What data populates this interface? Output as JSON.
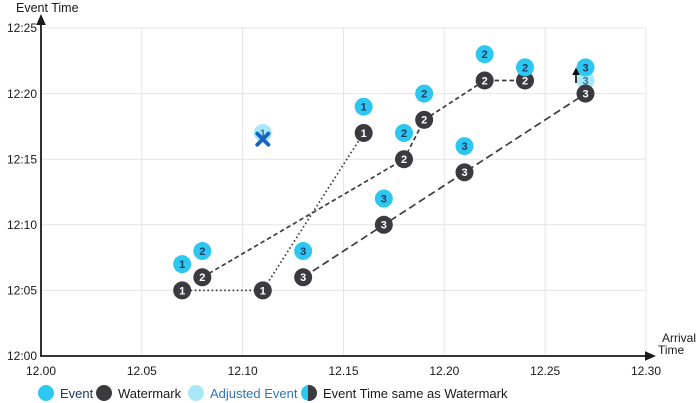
{
  "chart": {
    "y_axis_title": "Event Time",
    "x_axis_title_line1": "Arrival",
    "x_axis_title_line2": "Time"
  },
  "legend": {
    "items": [
      {
        "label": "Event",
        "marker": "event-circle",
        "text_color": "#1f3864"
      },
      {
        "label": "Watermark",
        "marker": "watermark-circle",
        "text_color": "#1a1a1a"
      },
      {
        "label": "Adjusted Event",
        "marker": "adjusted-event-circle",
        "text_color": "#2e75b6"
      },
      {
        "label": "Event Time same as Watermark",
        "marker": "half-event-half-watermark-circle",
        "text_color": "#1a1a1a"
      }
    ]
  },
  "chart_data": {
    "type": "scatter",
    "title": "",
    "x_axis": {
      "label": "Arrival Time",
      "ticks": [
        "12.00",
        "12.05",
        "12.10",
        "12.15",
        "12.20",
        "12.25",
        "12.30"
      ],
      "tick_values": [
        12.0,
        12.05,
        12.1,
        12.15,
        12.2,
        12.25,
        12.3
      ],
      "range": [
        12.0,
        12.3
      ],
      "grid": true
    },
    "y_axis": {
      "label": "Event Time",
      "ticks": [
        "12:00",
        "12:05",
        "12:10",
        "12:15",
        "12:20",
        "12:25"
      ],
      "tick_values_minutes_after_1200": [
        0,
        5,
        10,
        15,
        20,
        25
      ],
      "range_minutes_after_1200": [
        0,
        25
      ],
      "grid": true
    },
    "substreams": [
      {
        "id": "1",
        "watermark_line_style": "dotted",
        "events": [
          {
            "arrival": 12.07,
            "event_time": "12:07",
            "et_min": 7
          },
          {
            "arrival": 12.16,
            "event_time": "12:19",
            "et_min": 19
          }
        ],
        "watermarks": [
          {
            "arrival": 12.07,
            "event_time": "12:05",
            "et_min": 5
          },
          {
            "arrival": 12.11,
            "event_time": "12:05",
            "et_min": 5
          },
          {
            "arrival": 12.16,
            "event_time": "12:17",
            "et_min": 17
          }
        ],
        "adjusted_events": [
          {
            "arrival": 12.11,
            "event_time": "12:17",
            "et_min": 17,
            "x_mark": true,
            "up_arrow": false
          }
        ]
      },
      {
        "id": "2",
        "watermark_line_style": "dashed",
        "events": [
          {
            "arrival": 12.08,
            "event_time": "12:08",
            "et_min": 8
          },
          {
            "arrival": 12.18,
            "event_time": "12:17",
            "et_min": 17
          },
          {
            "arrival": 12.19,
            "event_time": "12:20",
            "et_min": 20
          },
          {
            "arrival": 12.22,
            "event_time": "12:23",
            "et_min": 23
          },
          {
            "arrival": 12.24,
            "event_time": "12:22",
            "et_min": 22
          }
        ],
        "watermarks": [
          {
            "arrival": 12.08,
            "event_time": "12:06",
            "et_min": 6
          },
          {
            "arrival": 12.18,
            "event_time": "12:15",
            "et_min": 15
          },
          {
            "arrival": 12.19,
            "event_time": "12:18",
            "et_min": 18
          },
          {
            "arrival": 12.22,
            "event_time": "12:21",
            "et_min": 21
          },
          {
            "arrival": 12.24,
            "event_time": "12:21",
            "et_min": 21
          }
        ],
        "adjusted_events": []
      },
      {
        "id": "3",
        "watermark_line_style": "longdash",
        "events": [
          {
            "arrival": 12.13,
            "event_time": "12:08",
            "et_min": 8
          },
          {
            "arrival": 12.17,
            "event_time": "12:12",
            "et_min": 12
          },
          {
            "arrival": 12.21,
            "event_time": "12:16",
            "et_min": 16
          },
          {
            "arrival": 12.27,
            "event_time": "12:22",
            "et_min": 22
          }
        ],
        "watermarks": [
          {
            "arrival": 12.13,
            "event_time": "12:06",
            "et_min": 6
          },
          {
            "arrival": 12.17,
            "event_time": "12:10",
            "et_min": 10
          },
          {
            "arrival": 12.21,
            "event_time": "12:14",
            "et_min": 14
          },
          {
            "arrival": 12.27,
            "event_time": "12:20",
            "et_min": 20
          }
        ],
        "adjusted_events": [
          {
            "arrival": 12.27,
            "event_time": "12:21",
            "et_min": 21,
            "x_mark": false,
            "up_arrow": true
          }
        ]
      }
    ],
    "colors": {
      "event": "#2ec7f0",
      "watermark": "#3b3a3f",
      "adjusted_event": "#a8e8f8",
      "event_number": "#1f3864",
      "watermark_number": "#ffffff",
      "adjusted_number": "#2e75b6",
      "watermark_line": "#3e3d42",
      "grid": "#e6e6e6",
      "axis": "#1a1a1a",
      "text": "#1a1a1a",
      "x_mark": "#1565c0",
      "up_arrow": "#111111"
    }
  }
}
